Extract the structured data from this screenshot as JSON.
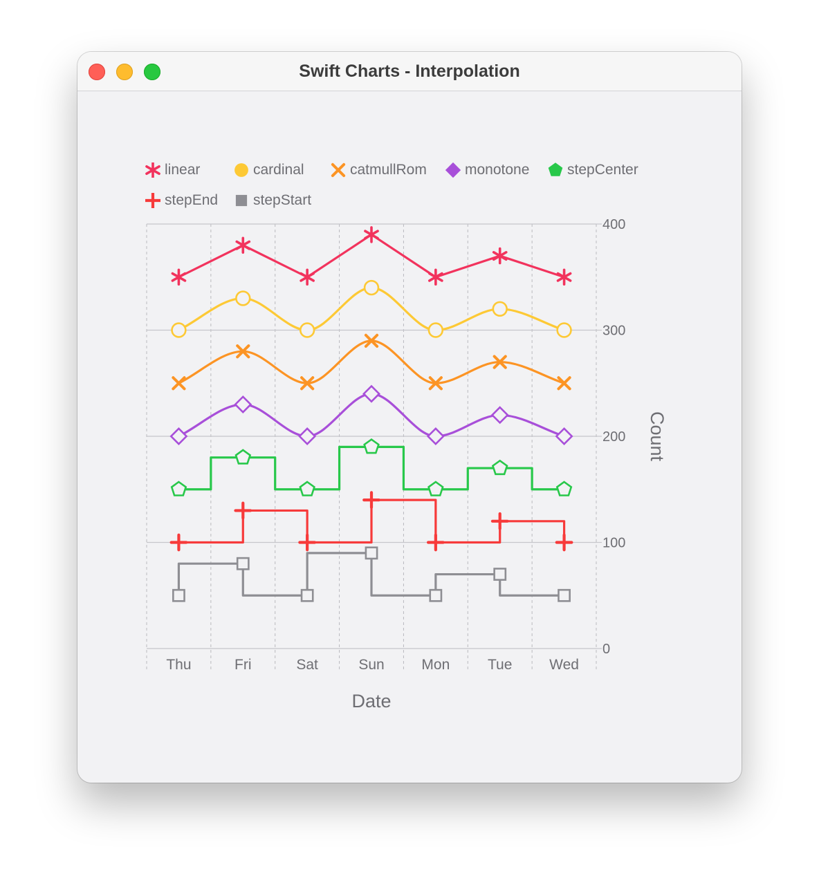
{
  "window": {
    "title": "Swift Charts - Interpolation"
  },
  "chart_data": {
    "type": "line",
    "x_axis_title": "Date",
    "y_axis_title": "Count",
    "categories": [
      "Thu",
      "Fri",
      "Sat",
      "Sun",
      "Mon",
      "Tue",
      "Wed"
    ],
    "ylim": [
      0,
      400
    ],
    "y_ticks": [
      0,
      100,
      200,
      300,
      400
    ],
    "legend_position": "top",
    "series": [
      {
        "name": "linear",
        "interpolation": "linear",
        "symbol": "asterisk",
        "color": "#f2335d",
        "values": [
          350,
          380,
          350,
          390,
          350,
          370,
          350
        ]
      },
      {
        "name": "cardinal",
        "interpolation": "cardinal",
        "symbol": "circle",
        "color": "#fdc935",
        "values": [
          300,
          330,
          300,
          340,
          300,
          320,
          300
        ]
      },
      {
        "name": "catmullRom",
        "interpolation": "catmullRom",
        "symbol": "cross",
        "color": "#fc9424",
        "values": [
          250,
          280,
          250,
          290,
          250,
          270,
          250
        ]
      },
      {
        "name": "monotone",
        "interpolation": "monotone",
        "symbol": "diamond",
        "color": "#a84fd9",
        "values": [
          200,
          230,
          200,
          240,
          200,
          220,
          200
        ]
      },
      {
        "name": "stepCenter",
        "interpolation": "stepCenter",
        "symbol": "pentagon",
        "color": "#28c84a",
        "values": [
          150,
          180,
          150,
          190,
          150,
          170,
          150
        ]
      },
      {
        "name": "stepEnd",
        "interpolation": "stepEnd",
        "symbol": "plus",
        "color": "#f73a3a",
        "values": [
          100,
          130,
          100,
          140,
          100,
          120,
          100
        ]
      },
      {
        "name": "stepStart",
        "interpolation": "stepStart",
        "symbol": "square",
        "color": "#8e8e93",
        "values": [
          50,
          80,
          50,
          90,
          50,
          70,
          50
        ]
      }
    ]
  }
}
